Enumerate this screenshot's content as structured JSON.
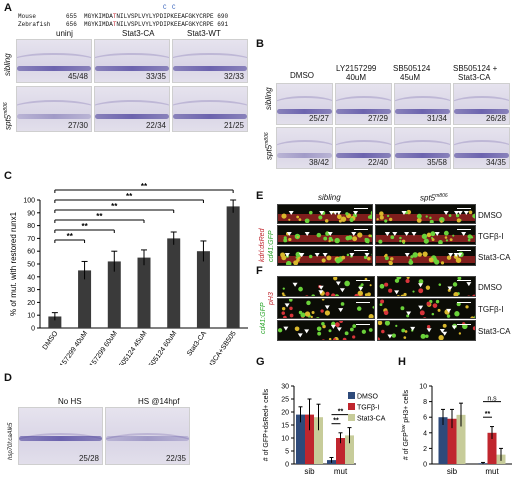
{
  "panels": {
    "A": "A",
    "B": "B",
    "C": "C",
    "D": "D",
    "E": "E",
    "F": "F",
    "G": "G",
    "H": "H"
  },
  "seq": {
    "mouse_label": "Mouse",
    "mouse_start": "655",
    "mouse_seq_a": "MGYKIMDA",
    "mouse_seq_red": "T",
    "mouse_seq_b": "NILVSPLVYLYPDIPKEEAFGKYCRPE",
    "mouse_end": "690",
    "zebra_label": "Zebrafish",
    "zebra_start": "656",
    "zebra_seq_a": "MGYKIMDA",
    "zebra_seq_red": "T",
    "zebra_seq_b": "NILVSPLVYLYPDIPKEEAFGKYCRPE",
    "zebra_end": "691",
    "mark1": "C",
    "mark2": "C"
  },
  "panelA": {
    "cols": [
      "uninj",
      "Stat3-CA",
      "Stat3-WT"
    ],
    "rows": [
      "sibling",
      "spt5"
    ],
    "row2_sup": "m806",
    "counts": [
      [
        "45/48",
        "33/35",
        "32/33"
      ],
      [
        "27/30",
        "22/34",
        "21/25"
      ]
    ]
  },
  "panelB": {
    "cols": [
      "DMSO",
      "LY2157299",
      "SB505124",
      "SB505124 +"
    ],
    "cols2": [
      "",
      "40uM",
      "45uM",
      "Stat3-CA"
    ],
    "rows": [
      "sibling",
      "spt5"
    ],
    "row2_sup": "m806",
    "counts": [
      [
        "25/27",
        "27/29",
        "31/34",
        "26/28"
      ],
      [
        "38/42",
        "22/40",
        "35/58",
        "34/35"
      ]
    ]
  },
  "chart_data": [
    {
      "panel": "C",
      "type": "bar",
      "ylabel": "% of mut. with restored runx1",
      "ylim": [
        0,
        100
      ],
      "yticks": [
        0,
        10,
        20,
        30,
        40,
        50,
        60,
        70,
        80,
        90,
        100
      ],
      "categories": [
        "DMSO",
        "LY2157299 40uM",
        "LY2157299 60uM",
        "SB505124 45uM",
        "SB505124 60uM",
        "Stat3-CA",
        "Stat3CA+SB505"
      ],
      "values": [
        9,
        45,
        52,
        55,
        70,
        60,
        95
      ],
      "errors": [
        3,
        7,
        8,
        6,
        5,
        8,
        5
      ],
      "significance": "**",
      "color": "#3a3a3a"
    },
    {
      "panel": "G",
      "type": "bar",
      "ylabel": "# of GFP+dsRed+ cells",
      "ylim": [
        0,
        30
      ],
      "yticks": [
        0,
        5,
        10,
        15,
        20,
        25,
        30
      ],
      "categories": [
        "sib",
        "mut"
      ],
      "series": [
        {
          "name": "DMSO",
          "values": [
            19,
            1.5
          ],
          "errors": [
            3,
            1
          ],
          "color": "#2e4a7a"
        },
        {
          "name": "TGFβ-I",
          "values": [
            19,
            10
          ],
          "errors": [
            6,
            2
          ],
          "color": "#c0262e"
        },
        {
          "name": "Stat3-CA",
          "values": [
            18,
            11
          ],
          "errors": [
            5,
            3
          ],
          "color": "#c7cc9a"
        }
      ],
      "annotations": [
        "**",
        "**"
      ],
      "legend": "right"
    },
    {
      "panel": "H",
      "type": "bar",
      "ylabel": "# of GFP",
      "ylabel_sup": "low",
      "ylabel_rest": " pH3+ cells",
      "ylim": [
        0,
        10
      ],
      "yticks": [
        0,
        2,
        4,
        6,
        8,
        10
      ],
      "categories": [
        "sib",
        "mut"
      ],
      "series": [
        {
          "name": "DMSO",
          "values": [
            6,
            0.1
          ],
          "errors": [
            1,
            0.1
          ],
          "color": "#2e4a7a"
        },
        {
          "name": "TGFβ-I",
          "values": [
            5.8,
            4
          ],
          "errors": [
            1.2,
            0.8
          ],
          "color": "#c0262e"
        },
        {
          "name": "Stat3-CA",
          "values": [
            6.3,
            1.2
          ],
          "errors": [
            1.5,
            0.8
          ],
          "color": "#c7cc9a"
        }
      ],
      "annotations": [
        "**",
        "n.s"
      ]
    }
  ],
  "panelD": {
    "ylab": "hsp70l:caAlk5",
    "cols": [
      "No HS",
      "HS @14hpf"
    ],
    "counts": [
      "25/28",
      "22/35"
    ]
  },
  "panelE": {
    "cols": [
      "sibling",
      "spt5"
    ],
    "col2_sup": "m806",
    "ylab_red": "kdrl:dsRed",
    "ylab_green": "cd41:GFP",
    "conds": [
      "DMSO",
      "TGFβ-I",
      "Stat3-CA"
    ]
  },
  "panelF": {
    "ylab_green": "cd41:GFP",
    "ylab_red": "pH3",
    "conds": [
      "DMSO",
      "TGFβ-I",
      "Stat3-CA"
    ]
  },
  "colors": {
    "arrowhead": "#ffffff",
    "sig_red": "#c0262e",
    "dsred": "#c0262e",
    "gfp": "#2aa52a"
  }
}
